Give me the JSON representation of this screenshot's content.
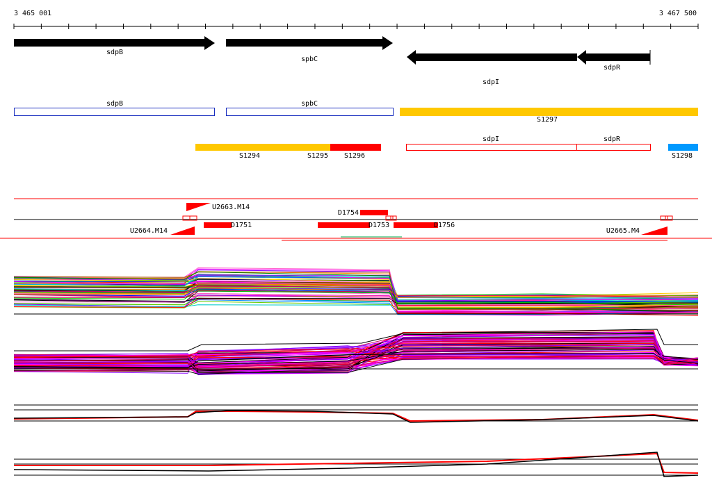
{
  "ruler": {
    "start_label": "3 465 001",
    "end_label": "3 467 500"
  },
  "genes": {
    "arrows": [
      {
        "name": "sdpB",
        "strand": "+"
      },
      {
        "name": "spbC",
        "strand": "+"
      },
      {
        "name": "sdpI",
        "strand": "-"
      },
      {
        "name": "sdpR",
        "strand": "-"
      }
    ],
    "boxes": [
      {
        "name": "sdpB"
      },
      {
        "name": "spbC"
      },
      {
        "name": "sdpI"
      },
      {
        "name": "sdpR"
      }
    ]
  },
  "segments": {
    "S1294": "S1294",
    "S1295": "S1295",
    "S1296": "S1296",
    "S1297": "S1297",
    "S1298": "S1298"
  },
  "features": {
    "U2663": "U2663.M14",
    "U2664": "U2664.M14",
    "U2665": "U2665.M4",
    "D1751": "D1751",
    "D1753": "D1753",
    "D1754": "D1754",
    "D1756": "D1756"
  },
  "colors": {
    "gene_arrow": "#000000",
    "gene_box": "#1a2fbf",
    "segment_yellow": "#ffc800",
    "segment_red": "#ff0000",
    "segment_blue": "#0099ff",
    "feature_red": "#ff0000",
    "feature_green": "#00b050"
  },
  "tracks": [
    {
      "name": "expression-group-1",
      "type": "multicolor-profiles"
    },
    {
      "name": "expression-group-2",
      "type": "multicolor-profiles"
    },
    {
      "name": "expression-summary-1",
      "type": "red-black-profiles"
    },
    {
      "name": "expression-summary-2",
      "type": "red-black-profiles"
    }
  ]
}
